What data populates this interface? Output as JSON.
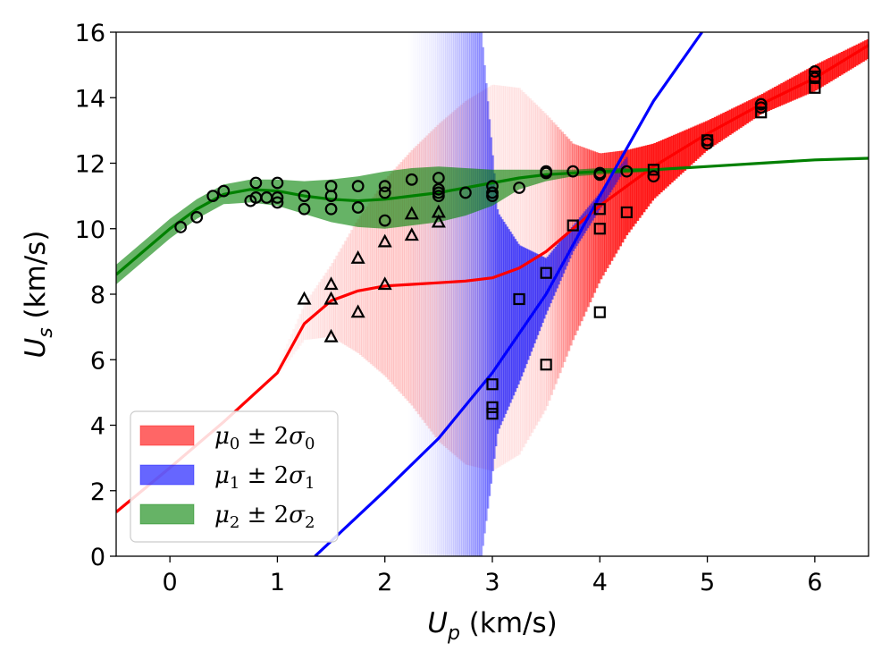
{
  "chart_data": {
    "type": "scatter",
    "xlabel": {
      "symbol": "U",
      "sub": "p",
      "units": "(km/s)"
    },
    "ylabel": {
      "symbol": "U",
      "sub": "s",
      "units": "(km/s)"
    },
    "xlim": [
      -0.5,
      6.5
    ],
    "ylim": [
      0,
      16
    ],
    "x_ticks": [
      0,
      1,
      2,
      3,
      4,
      5,
      6
    ],
    "y_ticks": [
      0,
      2,
      4,
      6,
      8,
      10,
      12,
      14,
      16
    ],
    "legend": {
      "placement": "lower-left",
      "entries": [
        {
          "mu": "μ",
          "sub": "0",
          "pm": "± 2",
          "sigma": "σ",
          "color": "#ff0000"
        },
        {
          "mu": "μ",
          "sub": "1",
          "pm": "± 2",
          "sigma": "σ",
          "color": "#0000ff"
        },
        {
          "mu": "μ",
          "sub": "2",
          "pm": "± 2",
          "sigma": "σ",
          "color": "#008000"
        }
      ]
    },
    "series": [
      {
        "name": "mu0",
        "color": "#ff0000",
        "mean_x": [
          -0.5,
          0,
          0.5,
          1.0,
          1.25,
          1.5,
          1.75,
          2.0,
          2.25,
          2.5,
          2.75,
          3.0,
          3.25,
          3.5,
          3.75,
          4.0,
          4.25,
          4.5,
          5.0,
          5.5,
          6.0,
          6.5
        ],
        "mean_y": [
          1.35,
          2.7,
          4.1,
          5.6,
          7.1,
          7.8,
          8.1,
          8.25,
          8.3,
          8.35,
          8.4,
          8.5,
          8.8,
          9.3,
          10.0,
          10.7,
          11.3,
          11.9,
          12.9,
          13.8,
          14.6,
          15.6
        ],
        "band_x": [
          1.0,
          1.25,
          1.5,
          1.75,
          2.0,
          2.25,
          2.5,
          2.75,
          3.0,
          3.25,
          3.5,
          3.75,
          4.0,
          4.25,
          4.5,
          5.0,
          5.5,
          6.0,
          6.5
        ],
        "band_upper": [
          5.8,
          7.7,
          8.9,
          10.3,
          11.5,
          12.4,
          13.2,
          13.9,
          14.4,
          14.3,
          13.5,
          12.6,
          12.3,
          12.4,
          12.6,
          13.3,
          14.1,
          15.0,
          15.8
        ],
        "band_lower": [
          5.5,
          6.6,
          6.7,
          6.2,
          5.5,
          4.6,
          3.5,
          2.8,
          2.6,
          3.1,
          4.5,
          6.6,
          8.4,
          9.8,
          10.9,
          12.4,
          13.5,
          14.2,
          15.2
        ],
        "band_alpha": [
          0.02,
          0.06,
          0.1,
          0.13,
          0.16,
          0.16,
          0.13,
          0.1,
          0.07,
          0.08,
          0.12,
          0.4,
          0.65,
          0.8,
          0.85,
          0.85,
          0.85,
          0.85,
          0.85
        ]
      },
      {
        "name": "mu1",
        "color": "#0000ff",
        "mean_x": [
          1.35,
          2.0,
          2.5,
          3.0,
          3.5,
          4.0,
          4.5,
          4.95
        ],
        "mean_y": [
          0,
          2.0,
          3.6,
          5.6,
          8.0,
          11.0,
          13.9,
          16.0
        ],
        "band_x": [
          2.2,
          2.45,
          2.6,
          2.75,
          2.9,
          3.05,
          3.25,
          3.5,
          3.75,
          4.0,
          4.25
        ],
        "band_upper": [
          16,
          16,
          16,
          16,
          16,
          10.5,
          9.5,
          9.1,
          10.1,
          11.1,
          12.2
        ],
        "band_lower": [
          0,
          0,
          0,
          0,
          0,
          3.8,
          5.3,
          7.4,
          9.3,
          10.6,
          11.9
        ],
        "band_alpha": [
          0.0,
          0.05,
          0.12,
          0.22,
          0.35,
          0.55,
          0.6,
          0.6,
          0.55,
          0.5,
          0.4
        ]
      },
      {
        "name": "mu2",
        "color": "#008000",
        "mean_x": [
          -0.5,
          -0.25,
          0,
          0.25,
          0.5,
          0.75,
          1.0,
          1.25,
          1.5,
          1.75,
          2.0,
          2.25,
          2.5,
          2.75,
          3.0,
          3.25,
          3.5,
          4.0,
          4.5,
          5.0,
          5.5,
          6.0,
          6.5
        ],
        "mean_y": [
          8.6,
          9.3,
          10.0,
          10.6,
          11.05,
          11.2,
          11.15,
          11.0,
          10.9,
          10.85,
          10.9,
          11.0,
          11.1,
          11.25,
          11.4,
          11.55,
          11.65,
          11.75,
          11.8,
          11.9,
          12.0,
          12.1,
          12.15
        ],
        "band_x": [
          -0.5,
          -0.25,
          0,
          0.25,
          0.5,
          0.75,
          1.0,
          1.25,
          1.5,
          1.75,
          2.0,
          2.25,
          2.5,
          2.75,
          3.0,
          3.25,
          3.5,
          3.75,
          4.0,
          4.25,
          4.5
        ],
        "band_upper": [
          8.9,
          9.6,
          10.3,
          10.9,
          11.35,
          11.5,
          11.5,
          11.45,
          11.5,
          11.6,
          11.75,
          11.85,
          11.9,
          11.85,
          11.8,
          11.8,
          11.8,
          11.8,
          11.85,
          11.85,
          11.85
        ],
        "band_lower": [
          8.3,
          9.0,
          9.7,
          10.3,
          10.75,
          10.8,
          10.7,
          10.45,
          10.2,
          10.05,
          10.0,
          10.1,
          10.2,
          10.4,
          10.7,
          11.2,
          11.45,
          11.6,
          11.65,
          11.7,
          11.75
        ]
      }
    ],
    "circles": [
      [
        0.1,
        10.05
      ],
      [
        0.25,
        10.35
      ],
      [
        0.4,
        11.0
      ],
      [
        0.5,
        11.15
      ],
      [
        0.75,
        10.85
      ],
      [
        0.8,
        11.4
      ],
      [
        0.8,
        10.95
      ],
      [
        0.9,
        10.95
      ],
      [
        1.0,
        11.4
      ],
      [
        1.0,
        10.95
      ],
      [
        1.0,
        10.8
      ],
      [
        1.25,
        11.0
      ],
      [
        1.25,
        10.6
      ],
      [
        1.5,
        11.3
      ],
      [
        1.5,
        11.0
      ],
      [
        1.5,
        10.6
      ],
      [
        1.75,
        11.3
      ],
      [
        1.75,
        10.65
      ],
      [
        2.0,
        11.3
      ],
      [
        2.0,
        11.1
      ],
      [
        2.0,
        10.25
      ],
      [
        2.25,
        11.5
      ],
      [
        2.5,
        11.55
      ],
      [
        2.5,
        11.2
      ],
      [
        2.5,
        11.1
      ],
      [
        2.5,
        11.0
      ],
      [
        2.75,
        11.1
      ],
      [
        3.0,
        11.3
      ],
      [
        3.0,
        11.1
      ],
      [
        3.0,
        11.0
      ],
      [
        3.25,
        11.25
      ],
      [
        3.5,
        11.75
      ],
      [
        3.5,
        11.7
      ],
      [
        3.75,
        11.75
      ],
      [
        4.0,
        11.7
      ],
      [
        4.0,
        11.65
      ],
      [
        4.25,
        11.75
      ],
      [
        4.5,
        11.6
      ],
      [
        5.0,
        12.6
      ],
      [
        5.0,
        12.7
      ],
      [
        5.5,
        13.8
      ],
      [
        5.5,
        13.7
      ],
      [
        6.0,
        14.8
      ],
      [
        6.0,
        14.6
      ]
    ],
    "triangles": [
      [
        1.25,
        7.85
      ],
      [
        1.5,
        8.3
      ],
      [
        1.5,
        7.85
      ],
      [
        1.5,
        6.7
      ],
      [
        1.75,
        9.1
      ],
      [
        1.75,
        7.45
      ],
      [
        2.0,
        9.6
      ],
      [
        2.0,
        8.3
      ],
      [
        2.25,
        10.45
      ],
      [
        2.25,
        9.8
      ],
      [
        2.5,
        10.5
      ],
      [
        2.5,
        10.2
      ]
    ],
    "squares": [
      [
        3.0,
        5.25
      ],
      [
        3.0,
        4.55
      ],
      [
        3.0,
        4.35
      ],
      [
        3.25,
        7.85
      ],
      [
        3.5,
        8.65
      ],
      [
        3.5,
        5.85
      ],
      [
        3.75,
        10.1
      ],
      [
        4.0,
        10.6
      ],
      [
        4.0,
        10.0
      ],
      [
        4.0,
        7.45
      ],
      [
        4.25,
        10.5
      ],
      [
        4.5,
        11.8
      ],
      [
        5.0,
        12.7
      ],
      [
        5.5,
        13.55
      ],
      [
        6.0,
        14.65
      ],
      [
        6.0,
        14.3
      ]
    ]
  }
}
